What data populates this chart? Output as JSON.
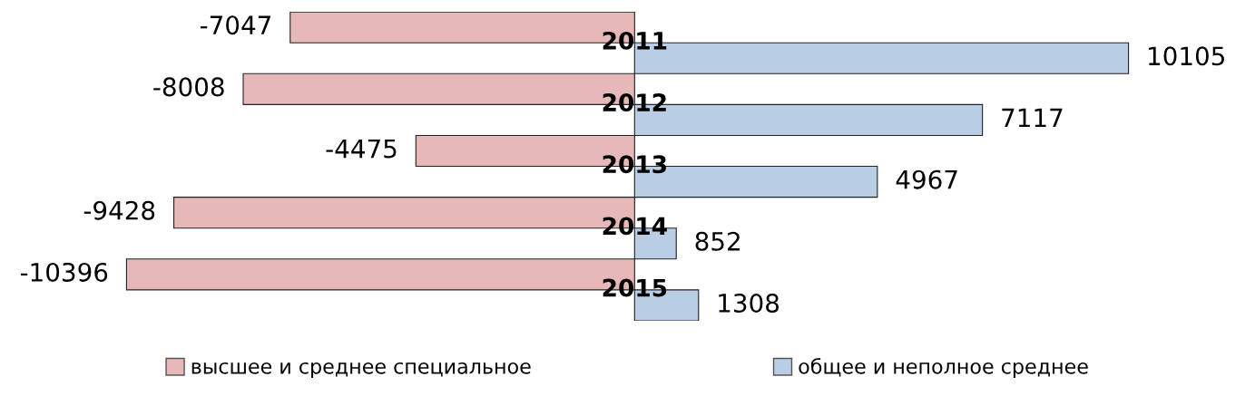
{
  "chart_data": {
    "type": "bar",
    "orientation": "horizontal",
    "categories": [
      "2011",
      "2012",
      "2013",
      "2014",
      "2015"
    ],
    "series": [
      {
        "name": "высшее и среднее специальное",
        "color": "#e6b9b8",
        "values": [
          -7047,
          -8008,
          -4475,
          -9428,
          -10396
        ]
      },
      {
        "name": "общее и неполное среднее",
        "color": "#b9cde5",
        "values": [
          10105,
          7117,
          4967,
          852,
          1308
        ]
      }
    ],
    "tick_labels": false,
    "data_labels": true,
    "grid": false,
    "legend": "bottom"
  }
}
